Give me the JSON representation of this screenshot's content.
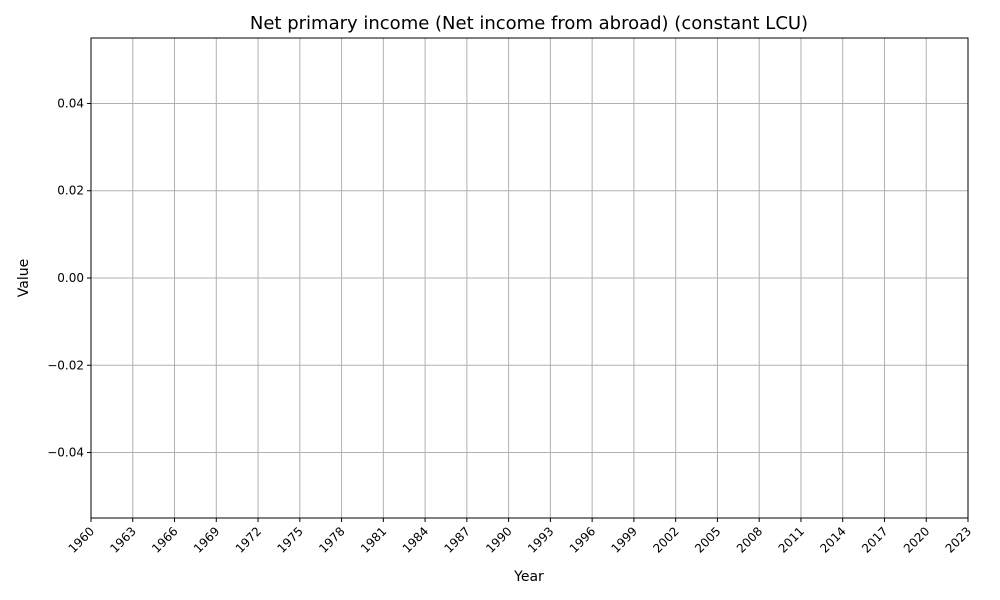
{
  "chart_data": {
    "type": "line",
    "title": "Net primary income (Net income from abroad) (constant LCU)",
    "xlabel": "Year",
    "ylabel": "Value",
    "x_ticks": [
      "1960",
      "1963",
      "1966",
      "1969",
      "1972",
      "1975",
      "1978",
      "1981",
      "1984",
      "1987",
      "1990",
      "1993",
      "1996",
      "1999",
      "2002",
      "2005",
      "2008",
      "2011",
      "2014",
      "2017",
      "2020",
      "2023"
    ],
    "y_ticks": [
      "0.04",
      "0.02",
      "0.00",
      "−0.02",
      "−0.04"
    ],
    "y_tick_values": [
      0.04,
      0.02,
      0.0,
      -0.02,
      -0.04
    ],
    "xlim": [
      1960,
      2023
    ],
    "ylim": [
      -0.055,
      0.055
    ],
    "grid": true,
    "series": [],
    "colors": {
      "grid": "#b0b0b0",
      "axis": "#000000",
      "background": "#ffffff"
    }
  }
}
